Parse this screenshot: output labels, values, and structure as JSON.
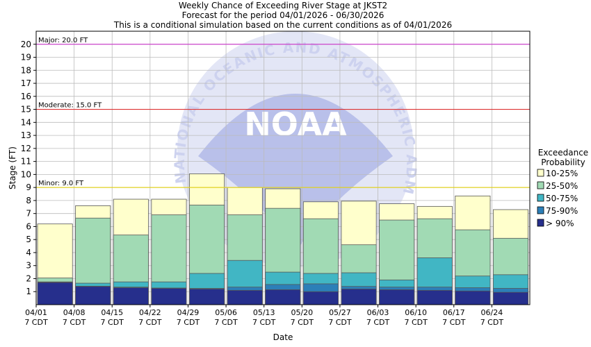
{
  "chart_data": {
    "type": "bar",
    "title_lines": [
      "Weekly Chance of Exceeding River Stage at JKST2",
      "Forecast for the period 04/01/2026 - 06/30/2026",
      "This is a conditional simulation based on the current conditions as of 04/01/2026"
    ],
    "xlabel": "Date",
    "ylabel": "Stage (FT)",
    "ylim": [
      0,
      21
    ],
    "yticks": [
      1,
      2,
      3,
      4,
      5,
      6,
      7,
      8,
      9,
      10,
      11,
      12,
      13,
      14,
      15,
      16,
      17,
      18,
      19,
      20
    ],
    "grid": true,
    "categories": [
      "04/01",
      "04/08",
      "04/15",
      "04/22",
      "04/29",
      "05/06",
      "05/13",
      "05/20",
      "05/27",
      "06/03",
      "06/10",
      "06/17",
      "06/24"
    ],
    "xtick_labels": [
      {
        "date": "04/01",
        "tz": "7 CDT"
      },
      {
        "date": "04/08",
        "tz": "7 CDT"
      },
      {
        "date": "04/15",
        "tz": "7 CDT"
      },
      {
        "date": "04/22",
        "tz": "7 CDT"
      },
      {
        "date": "04/29",
        "tz": "7 CDT"
      },
      {
        "date": "05/06",
        "tz": "7 CDT"
      },
      {
        "date": "05/13",
        "tz": "7 CDT"
      },
      {
        "date": "05/20",
        "tz": "7 CDT"
      },
      {
        "date": "05/27",
        "tz": "7 CDT"
      },
      {
        "date": "06/03",
        "tz": "7 CDT"
      },
      {
        "date": "06/10",
        "tz": "7 CDT"
      },
      {
        "date": "06/17",
        "tz": "7 CDT"
      },
      {
        "date": "06/24",
        "tz": "7 CDT"
      }
    ],
    "legend_title": [
      "Exceedance",
      "Probability"
    ],
    "legend_position": "right",
    "series": [
      {
        "name": "> 90%",
        "color": "#262f8c",
        "values": [
          1.7,
          1.4,
          1.3,
          1.25,
          1.2,
          1.1,
          1.15,
          1.0,
          1.2,
          1.15,
          1.1,
          1.05,
          0.95
        ]
      },
      {
        "name": "75-90%",
        "color": "#2c7fb8",
        "values": [
          1.72,
          1.42,
          1.35,
          1.28,
          1.25,
          1.35,
          1.55,
          1.6,
          1.4,
          1.35,
          1.35,
          1.3,
          1.25
        ]
      },
      {
        "name": "50-75%",
        "color": "#41b6c4",
        "values": [
          1.75,
          1.65,
          1.75,
          1.75,
          2.4,
          3.4,
          2.5,
          2.4,
          2.45,
          1.9,
          3.6,
          2.2,
          2.3
        ]
      },
      {
        "name": "25-50%",
        "color": "#a1dab4",
        "values": [
          2.05,
          6.65,
          5.35,
          6.9,
          7.65,
          6.9,
          7.4,
          6.6,
          4.6,
          6.5,
          6.6,
          5.75,
          5.1
        ]
      },
      {
        "name": "10-25%",
        "color": "#ffffcc",
        "values": [
          6.2,
          7.6,
          8.1,
          8.1,
          10.05,
          9.0,
          8.9,
          7.9,
          7.95,
          7.75,
          7.55,
          8.35,
          7.3
        ]
      }
    ],
    "annotations": [
      {
        "label": "Major: 20.0 FT",
        "value": 20.0,
        "color": "#cc44cc"
      },
      {
        "label": "Moderate: 15.0 FT",
        "value": 15.0,
        "color": "#dd3333"
      },
      {
        "label": "Minor: 9.0 FT",
        "value": 9.0,
        "color": "#e0d020"
      }
    ],
    "watermark": {
      "logo_text": "NOAA",
      "ring_text": "NATIONAL OCEANIC AND ATMOSPHERIC ADMINISTRATION"
    }
  }
}
